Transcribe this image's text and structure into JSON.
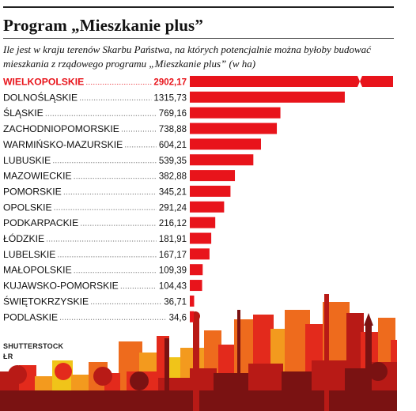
{
  "title": "Program „Mieszkanie plus”",
  "subtitle": "Ile jest w kraju terenów Skarbu Państwa, na których potencjalnie można byłoby budować mieszkania z rządowego programu „Mieszkanie plus” (w ha)",
  "credits": {
    "photo": "SHUTTERSTOCK",
    "initials": "ŁR"
  },
  "colors": {
    "bar": "#e8141b",
    "highlight_text": "#e8141b",
    "text": "#111111",
    "skyline": [
      "#f0c419",
      "#f39a1e",
      "#ee6b1d",
      "#e32a1c",
      "#b81a16",
      "#7a1212"
    ]
  },
  "chart_data": {
    "type": "bar",
    "orientation": "horizontal",
    "title": "Program „Mieszkanie plus”",
    "subtitle": "Ile jest w kraju terenów Skarbu Państwa, na których potencjalnie można byłoby budować mieszkania z rządowego programu „Mieszkanie plus” (w ha)",
    "categories": [
      "WIELKOPOLSKIE",
      "DOLNOŚLĄSKIE",
      "ŚLĄSKIE",
      "ZACHODNIOPOMORSKIE",
      "WARMIŃSKO-MAZURSKIE",
      "LUBUSKIE",
      "MAZOWIECKIE",
      "POMORSKIE",
      "OPOLSKIE",
      "PODKARPACKIE",
      "ŁÓDZKIE",
      "LUBELSKIE",
      "MAŁOPOLSKIE",
      "KUJAWSKO-POMORSKIE",
      "ŚWIĘTOKRZYSKIE",
      "PODLASKIE"
    ],
    "values": [
      2902.17,
      1315.73,
      769.16,
      738.88,
      604.21,
      539.35,
      382.88,
      345.21,
      291.24,
      216.12,
      181.91,
      167.17,
      109.39,
      104.43,
      36.71,
      34.6
    ],
    "value_labels": [
      "2902,17",
      "1315,73",
      "769,16",
      "738,88",
      "604,21",
      "539,35",
      "382,88",
      "345,21",
      "291,24",
      "216,12",
      "181,91",
      "167,17",
      "109,39",
      "104,43",
      "36,71",
      "34,6"
    ],
    "highlight_index": 0,
    "broken_bar_index": 0,
    "grid": false,
    "legend": "none"
  }
}
